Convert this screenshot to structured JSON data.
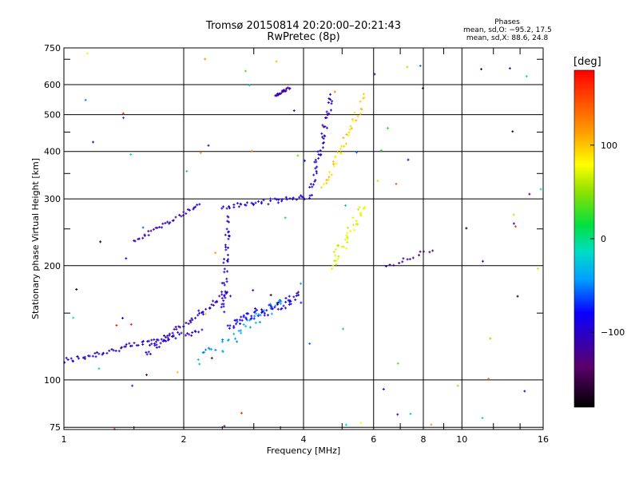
{
  "header": {
    "title_line1": "Tromsø 20150814 20:20:00–20:21:43",
    "title_line2": "RwPretec (8p)"
  },
  "stats": {
    "heading": "Phases",
    "line_o": "mean, sd,O: −95.2, 17.5",
    "line_x": "mean, sd,X:  88.6, 24.8"
  },
  "colorbar": {
    "label": "[deg]",
    "ticks": [
      "100",
      "0",
      "−100"
    ],
    "tick_values": [
      100,
      0,
      -100
    ],
    "range": [
      -180,
      180
    ]
  },
  "chart_data": {
    "type": "scatter",
    "xlabel": "Frequency [MHz]",
    "ylabel": "Stationary phase Virtual Height [km]",
    "xscale": "log",
    "yscale": "log",
    "xlim": [
      1,
      16
    ],
    "ylim": [
      74,
      750
    ],
    "x_ticks": [
      1,
      2,
      4,
      8,
      16
    ],
    "x_tick_labels": [
      "1",
      "2",
      "4",
      "8",
      "16"
    ],
    "x_minor": [
      6,
      10
    ],
    "x_minor_labels": [
      "6",
      "10"
    ],
    "y_ticks": [
      75,
      100,
      200,
      300,
      400,
      500,
      600,
      750
    ],
    "y_tick_labels": [
      "75",
      "100",
      "200",
      "300",
      "400",
      "500",
      "600",
      "750"
    ],
    "grid": true,
    "color_by": "phase_deg",
    "segments": [
      {
        "name": "o-trace-low",
        "x0": 1.0,
        "x1": 2.2,
        "y0": 112,
        "y1": 135,
        "phase": -100,
        "n": 70,
        "jitter": 0.025
      },
      {
        "name": "o-trace-low2",
        "x0": 1.6,
        "x1": 2.6,
        "y0": 118,
        "y1": 170,
        "phase": -105,
        "n": 60,
        "jitter": 0.03
      },
      {
        "name": "o-trace-mid",
        "x0": 2.6,
        "x1": 3.9,
        "y0": 140,
        "y1": 165,
        "phase": -90,
        "n": 70,
        "jitter": 0.04
      },
      {
        "name": "o-vertical",
        "x0": 2.5,
        "x1": 2.6,
        "y0": 150,
        "y1": 270,
        "phase": -100,
        "n": 40,
        "jitter": 0.03
      },
      {
        "name": "f1-branch",
        "x0": 1.5,
        "x1": 2.2,
        "y0": 232,
        "y1": 290,
        "phase": -105,
        "n": 35,
        "jitter": 0.015
      },
      {
        "name": "f2-o",
        "x0": 2.5,
        "x1": 4.2,
        "y0": 285,
        "y1": 305,
        "phase": -95,
        "n": 45,
        "jitter": 0.02
      },
      {
        "name": "f2-o-cusp",
        "x0": 4.2,
        "x1": 4.7,
        "y0": 320,
        "y1": 560,
        "phase": -100,
        "n": 45,
        "jitter": 0.03
      },
      {
        "name": "f2-x",
        "x0": 4.5,
        "x1": 5.7,
        "y0": 320,
        "y1": 560,
        "phase": 95,
        "n": 40,
        "jitter": 0.03
      },
      {
        "name": "x-mid",
        "x0": 4.7,
        "x1": 5.7,
        "y0": 200,
        "y1": 290,
        "phase": 75,
        "n": 40,
        "jitter": 0.04
      },
      {
        "name": "scatter-cluster",
        "x0": 2.2,
        "x1": 3.5,
        "y0": 112,
        "y1": 160,
        "phase": -40,
        "n": 40,
        "jitter": 0.05
      },
      {
        "name": "high-blob",
        "x0": 3.4,
        "x1": 3.7,
        "y0": 560,
        "y1": 590,
        "phase": -110,
        "n": 20,
        "jitter": 0.01
      },
      {
        "name": "e-trace",
        "x0": 6.5,
        "x1": 8.4,
        "y0": 200,
        "y1": 220,
        "phase": -120,
        "n": 14,
        "jitter": 0.02
      }
    ],
    "noise": {
      "n": 80,
      "phase_range": [
        -180,
        180
      ]
    }
  }
}
